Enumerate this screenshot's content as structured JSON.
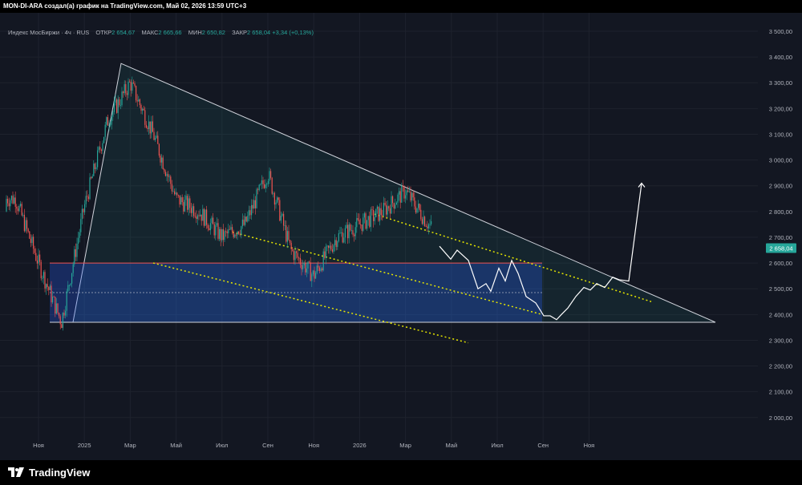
{
  "header": {
    "text": "MON-DI-ARA создал(а) график на TradingView.com, Май 02, 2026 13:59 UTC+3"
  },
  "legend": {
    "symbol": "Индекс МосБиржи · 4ч · RUS",
    "open_label": "ОТКР",
    "open_value": "2 654,67",
    "high_label": "МАКС",
    "high_value": "2 665,66",
    "low_label": "МИН",
    "low_value": "2 650,82",
    "close_label": "ЗАКР",
    "close_value": "2 658,04",
    "change": "+3,34 (+0,13%)"
  },
  "price_badge": "2 658,04",
  "colors": {
    "up": "#26a69a",
    "down": "#ef5350",
    "background": "#131722",
    "zone": "#1e3a6e",
    "trendline_dotted": "#e6e600"
  },
  "footer": {
    "logo_text": "TradingView"
  },
  "chart_data": {
    "type": "line",
    "title": "Индекс МосБиржи · 4ч · RUS",
    "y_ticks": [
      "3 500,00",
      "3 400,00",
      "3 300,00",
      "3 200,00",
      "3 100,00",
      "3 000,00",
      "2 900,00",
      "2 800,00",
      "2 700,00",
      "2 600,00",
      "2 500,00",
      "2 400,00",
      "2 300,00",
      "2 200,00",
      "2 100,00",
      "2 000,00"
    ],
    "y_tick_values": [
      3500,
      3400,
      3300,
      3200,
      3100,
      3000,
      2900,
      2800,
      2700,
      2600,
      2500,
      2400,
      2300,
      2200,
      2100,
      2000
    ],
    "x_ticks": [
      "Ноя",
      "2025",
      "Мар",
      "Май",
      "Июл",
      "Сен",
      "Ноя",
      "2026",
      "Мар",
      "Май",
      "Июл",
      "Сен",
      "Ноя"
    ],
    "x_tick_months": [
      "2024-11",
      "2025-01",
      "2025-03",
      "2025-05",
      "2025-07",
      "2025-09",
      "2025-11",
      "2026-01",
      "2026-03",
      "2026-05",
      "2026-07",
      "2026-09",
      "2026-11"
    ],
    "ylim": [
      1950,
      3550
    ],
    "price_series": {
      "name": "",
      "x": [
        "2024-10",
        "2024-11",
        "2024-12",
        "2025-01",
        "2025-02",
        "2025-03",
        "2025-04",
        "2025-05",
        "2025-06",
        "2025-07",
        "2025-08",
        "2025-09",
        "2025-10",
        "2025-11",
        "2025-12",
        "2026-01",
        "2026-02",
        "2026-03",
        "2026-04",
        "2026-05"
      ],
      "values": [
        2850,
        2600,
        2370,
        2820,
        3150,
        3300,
        3100,
        2850,
        2800,
        2700,
        2750,
        2950,
        2650,
        2550,
        2700,
        2750,
        2800,
        2880,
        2750,
        2658
      ]
    },
    "projection_series": {
      "name": "",
      "x": [
        "2026-05",
        "2026-06",
        "2026-07",
        "2026-08",
        "2026-09",
        "2026-10",
        "2026-11",
        "2026-12",
        "2027-01"
      ],
      "values": [
        2650,
        2500,
        2600,
        2480,
        2380,
        2530,
        2570,
        2540,
        2910
      ]
    },
    "support_zone": {
      "top": 2600,
      "bottom": 2370
    },
    "triangle": {
      "apex_high": 3375,
      "base_low": 2370
    }
  }
}
